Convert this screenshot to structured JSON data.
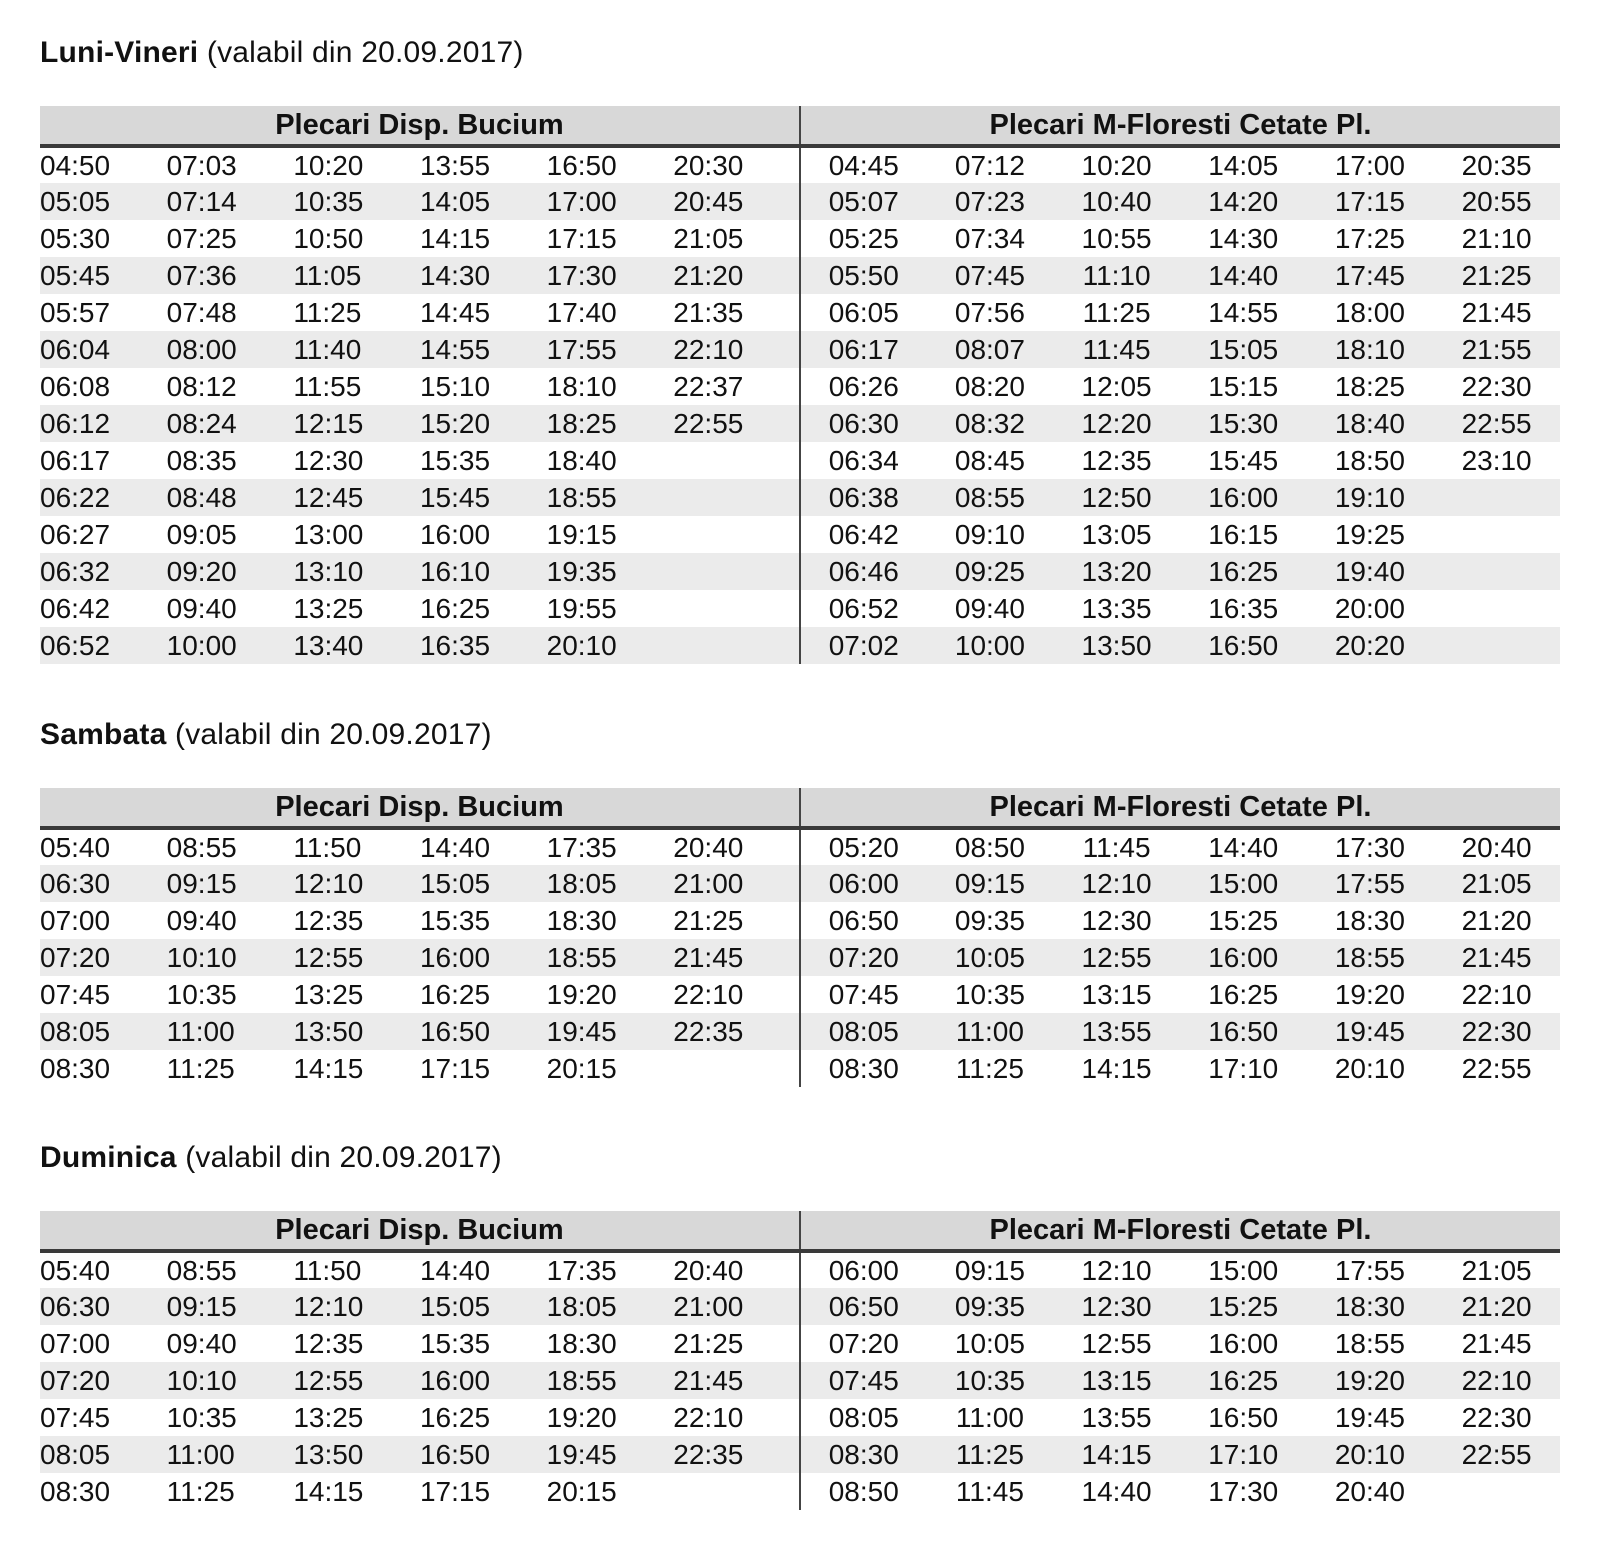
{
  "page": {
    "background": "#ffffff",
    "header_bg": "#d8d8d8",
    "stripe_bg": "#ebebeb",
    "header_rule_color": "#3a3a3a",
    "divider_color": "#444444",
    "text_color": "#111111"
  },
  "sections": [
    {
      "title_bold": "Luni-Vineri",
      "title_rest": "(valabil din 20.09.2017)",
      "left_header": "Plecari Disp. Bucium",
      "right_header": "Plecari M-Floresti Cetate Pl.",
      "rows": [
        {
          "left": [
            "04:50",
            "07:03",
            "10:20",
            "13:55",
            "16:50",
            "20:30"
          ],
          "right": [
            "04:45",
            "07:12",
            "10:20",
            "14:05",
            "17:00",
            "20:35"
          ]
        },
        {
          "left": [
            "05:05",
            "07:14",
            "10:35",
            "14:05",
            "17:00",
            "20:45"
          ],
          "right": [
            "05:07",
            "07:23",
            "10:40",
            "14:20",
            "17:15",
            "20:55"
          ]
        },
        {
          "left": [
            "05:30",
            "07:25",
            "10:50",
            "14:15",
            "17:15",
            "21:05"
          ],
          "right": [
            "05:25",
            "07:34",
            "10:55",
            "14:30",
            "17:25",
            "21:10"
          ]
        },
        {
          "left": [
            "05:45",
            "07:36",
            "11:05",
            "14:30",
            "17:30",
            "21:20"
          ],
          "right": [
            "05:50",
            "07:45",
            "11:10",
            "14:40",
            "17:45",
            "21:25"
          ]
        },
        {
          "left": [
            "05:57",
            "07:48",
            "11:25",
            "14:45",
            "17:40",
            "21:35"
          ],
          "right": [
            "06:05",
            "07:56",
            "11:25",
            "14:55",
            "18:00",
            "21:45"
          ]
        },
        {
          "left": [
            "06:04",
            "08:00",
            "11:40",
            "14:55",
            "17:55",
            "22:10"
          ],
          "right": [
            "06:17",
            "08:07",
            "11:45",
            "15:05",
            "18:10",
            "21:55"
          ]
        },
        {
          "left": [
            "06:08",
            "08:12",
            "11:55",
            "15:10",
            "18:10",
            "22:37"
          ],
          "right": [
            "06:26",
            "08:20",
            "12:05",
            "15:15",
            "18:25",
            "22:30"
          ]
        },
        {
          "left": [
            "06:12",
            "08:24",
            "12:15",
            "15:20",
            "18:25",
            "22:55"
          ],
          "right": [
            "06:30",
            "08:32",
            "12:20",
            "15:30",
            "18:40",
            "22:55"
          ]
        },
        {
          "left": [
            "06:17",
            "08:35",
            "12:30",
            "15:35",
            "18:40",
            ""
          ],
          "right": [
            "06:34",
            "08:45",
            "12:35",
            "15:45",
            "18:50",
            "23:10"
          ]
        },
        {
          "left": [
            "06:22",
            "08:48",
            "12:45",
            "15:45",
            "18:55",
            ""
          ],
          "right": [
            "06:38",
            "08:55",
            "12:50",
            "16:00",
            "19:10",
            ""
          ]
        },
        {
          "left": [
            "06:27",
            "09:05",
            "13:00",
            "16:00",
            "19:15",
            ""
          ],
          "right": [
            "06:42",
            "09:10",
            "13:05",
            "16:15",
            "19:25",
            ""
          ]
        },
        {
          "left": [
            "06:32",
            "09:20",
            "13:10",
            "16:10",
            "19:35",
            ""
          ],
          "right": [
            "06:46",
            "09:25",
            "13:20",
            "16:25",
            "19:40",
            ""
          ]
        },
        {
          "left": [
            "06:42",
            "09:40",
            "13:25",
            "16:25",
            "19:55",
            ""
          ],
          "right": [
            "06:52",
            "09:40",
            "13:35",
            "16:35",
            "20:00",
            ""
          ]
        },
        {
          "left": [
            "06:52",
            "10:00",
            "13:40",
            "16:35",
            "20:10",
            ""
          ],
          "right": [
            "07:02",
            "10:00",
            "13:50",
            "16:50",
            "20:20",
            ""
          ]
        }
      ]
    },
    {
      "title_bold": "Sambata",
      "title_rest": "(valabil din 20.09.2017)",
      "left_header": "Plecari Disp. Bucium",
      "right_header": "Plecari M-Floresti Cetate Pl.",
      "rows": [
        {
          "left": [
            "05:40",
            "08:55",
            "11:50",
            "14:40",
            "17:35",
            "20:40"
          ],
          "right": [
            "05:20",
            "08:50",
            "11:45",
            "14:40",
            "17:30",
            "20:40"
          ]
        },
        {
          "left": [
            "06:30",
            "09:15",
            "12:10",
            "15:05",
            "18:05",
            "21:00"
          ],
          "right": [
            "06:00",
            "09:15",
            "12:10",
            "15:00",
            "17:55",
            "21:05"
          ]
        },
        {
          "left": [
            "07:00",
            "09:40",
            "12:35",
            "15:35",
            "18:30",
            "21:25"
          ],
          "right": [
            "06:50",
            "09:35",
            "12:30",
            "15:25",
            "18:30",
            "21:20"
          ]
        },
        {
          "left": [
            "07:20",
            "10:10",
            "12:55",
            "16:00",
            "18:55",
            "21:45"
          ],
          "right": [
            "07:20",
            "10:05",
            "12:55",
            "16:00",
            "18:55",
            "21:45"
          ]
        },
        {
          "left": [
            "07:45",
            "10:35",
            "13:25",
            "16:25",
            "19:20",
            "22:10"
          ],
          "right": [
            "07:45",
            "10:35",
            "13:15",
            "16:25",
            "19:20",
            "22:10"
          ]
        },
        {
          "left": [
            "08:05",
            "11:00",
            "13:50",
            "16:50",
            "19:45",
            "22:35"
          ],
          "right": [
            "08:05",
            "11:00",
            "13:55",
            "16:50",
            "19:45",
            "22:30"
          ]
        },
        {
          "left": [
            "08:30",
            "11:25",
            "14:15",
            "17:15",
            "20:15",
            ""
          ],
          "right": [
            "08:30",
            "11:25",
            "14:15",
            "17:10",
            "20:10",
            "22:55"
          ]
        }
      ]
    },
    {
      "title_bold": "Duminica",
      "title_rest": "(valabil din 20.09.2017)",
      "left_header": "Plecari Disp. Bucium",
      "right_header": "Plecari M-Floresti Cetate Pl.",
      "rows": [
        {
          "left": [
            "05:40",
            "08:55",
            "11:50",
            "14:40",
            "17:35",
            "20:40"
          ],
          "right": [
            "06:00",
            "09:15",
            "12:10",
            "15:00",
            "17:55",
            "21:05"
          ]
        },
        {
          "left": [
            "06:30",
            "09:15",
            "12:10",
            "15:05",
            "18:05",
            "21:00"
          ],
          "right": [
            "06:50",
            "09:35",
            "12:30",
            "15:25",
            "18:30",
            "21:20"
          ]
        },
        {
          "left": [
            "07:00",
            "09:40",
            "12:35",
            "15:35",
            "18:30",
            "21:25"
          ],
          "right": [
            "07:20",
            "10:05",
            "12:55",
            "16:00",
            "18:55",
            "21:45"
          ]
        },
        {
          "left": [
            "07:20",
            "10:10",
            "12:55",
            "16:00",
            "18:55",
            "21:45"
          ],
          "right": [
            "07:45",
            "10:35",
            "13:15",
            "16:25",
            "19:20",
            "22:10"
          ]
        },
        {
          "left": [
            "07:45",
            "10:35",
            "13:25",
            "16:25",
            "19:20",
            "22:10"
          ],
          "right": [
            "08:05",
            "11:00",
            "13:55",
            "16:50",
            "19:45",
            "22:30"
          ]
        },
        {
          "left": [
            "08:05",
            "11:00",
            "13:50",
            "16:50",
            "19:45",
            "22:35"
          ],
          "right": [
            "08:30",
            "11:25",
            "14:15",
            "17:10",
            "20:10",
            "22:55"
          ]
        },
        {
          "left": [
            "08:30",
            "11:25",
            "14:15",
            "17:15",
            "20:15",
            ""
          ],
          "right": [
            "08:50",
            "11:45",
            "14:40",
            "17:30",
            "20:40",
            ""
          ]
        }
      ]
    }
  ]
}
